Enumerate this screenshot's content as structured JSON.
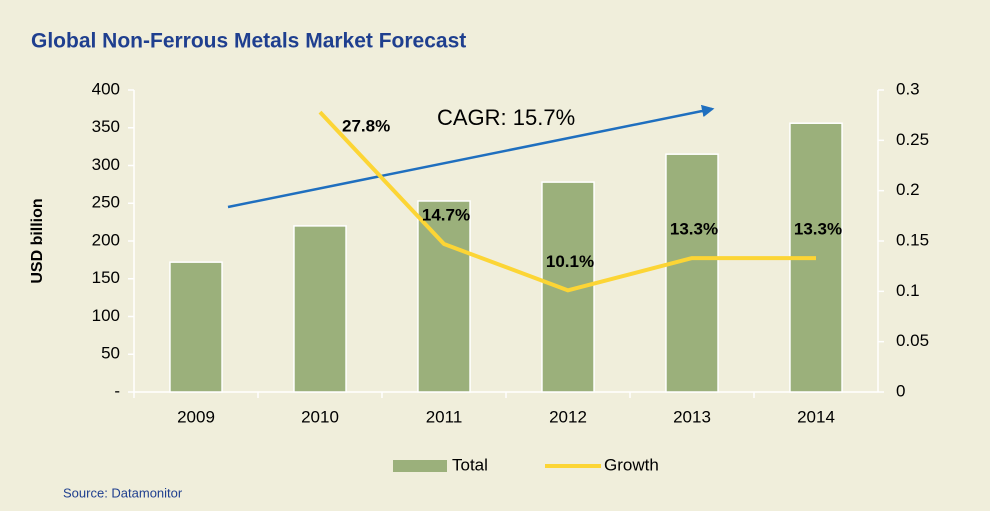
{
  "chart_data": {
    "type": "bar",
    "title": "Global Non-Ferrous Metals Market Forecast",
    "y_label": "USD billion",
    "source": "Source: Datamonitor",
    "annotations": [
      "CAGR: 15.7%"
    ],
    "categories": [
      "2009",
      "2010",
      "2011",
      "2012",
      "2013",
      "2014"
    ],
    "series": [
      {
        "name": "Total",
        "type": "bar",
        "color": "#9bb07b",
        "values": [
          172,
          220,
          253,
          278,
          315,
          356
        ]
      },
      {
        "name": "Growth",
        "type": "line",
        "axis": "y2",
        "color": "#fcd535",
        "values": [
          null,
          0.278,
          0.147,
          0.101,
          0.133,
          0.133
        ],
        "value_labels": [
          null,
          "27.8%",
          "14.7%",
          "10.1%",
          "13.3%",
          "13.3%"
        ]
      }
    ],
    "ylim": [
      0,
      400
    ],
    "yticks": [
      {
        "value": 0,
        "label": "-"
      },
      50,
      100,
      150,
      200,
      250,
      300,
      350,
      400
    ],
    "y2lim": [
      0,
      0.3
    ],
    "y2ticks": [
      0,
      0.05,
      0.1,
      0.15,
      0.2,
      0.25,
      0.3
    ],
    "legend": "bottom",
    "grid": false
  }
}
